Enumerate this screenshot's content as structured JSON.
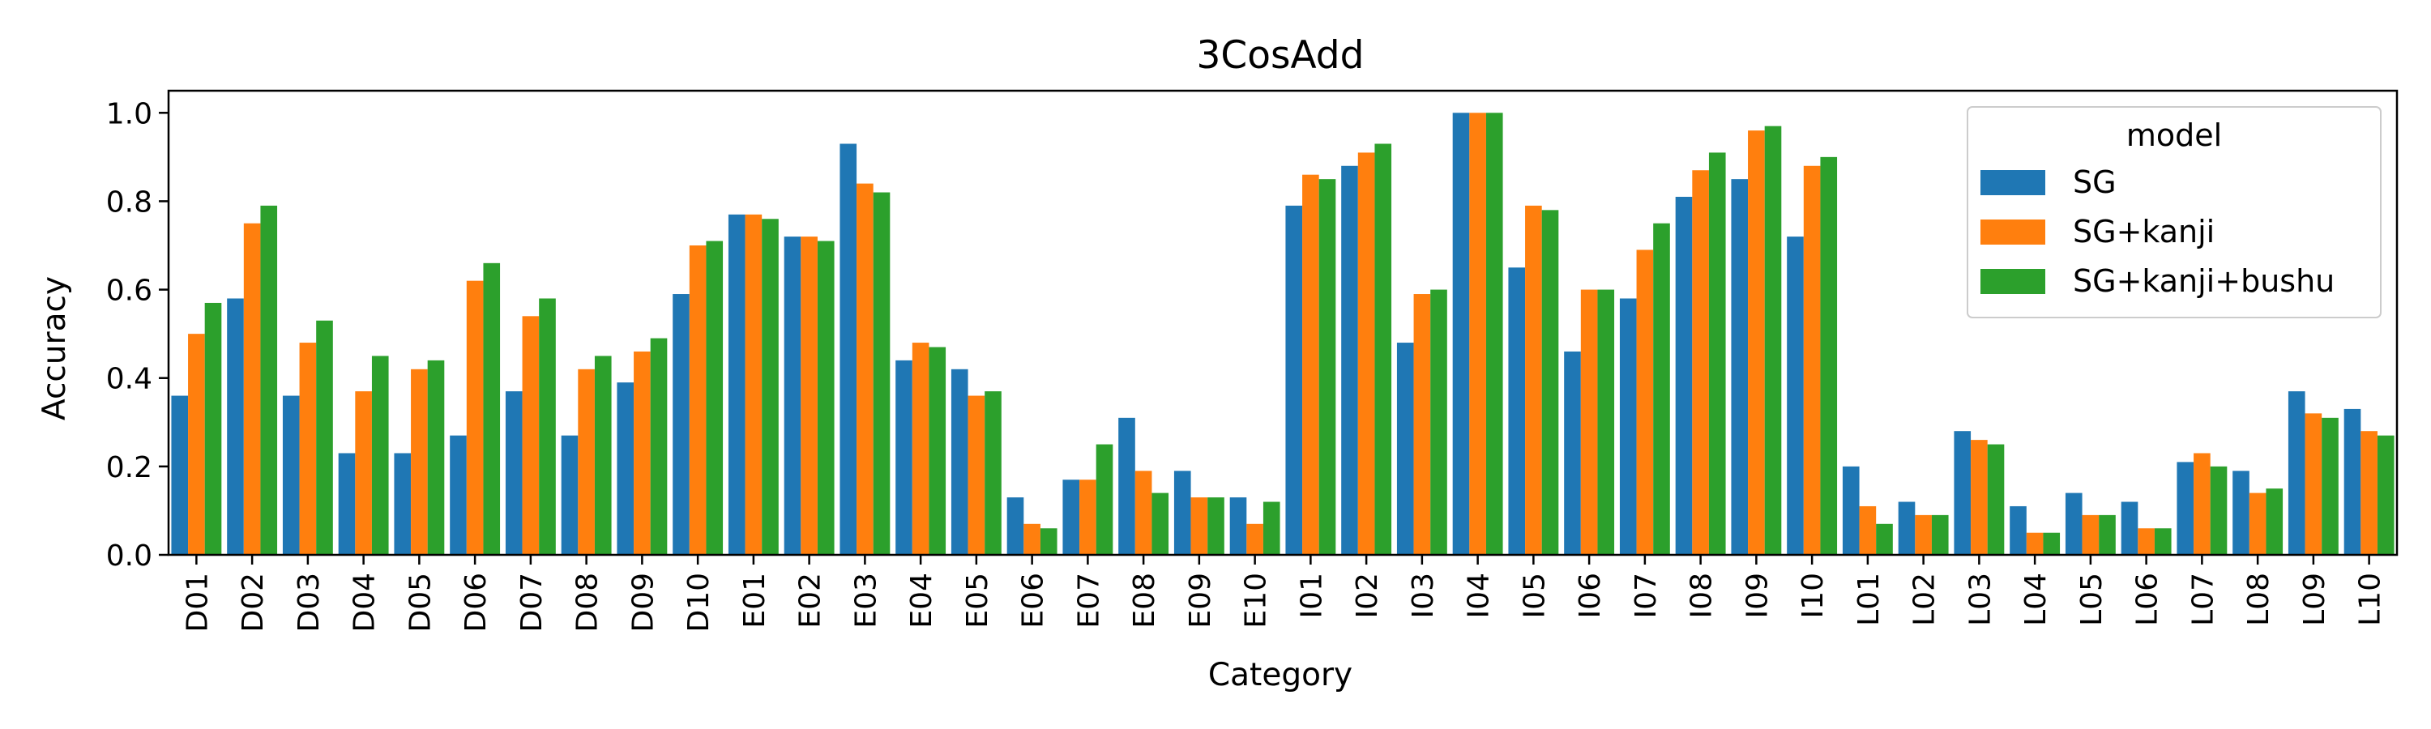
{
  "chart_data": {
    "type": "bar",
    "title": "3CosAdd",
    "xlabel": "Category",
    "ylabel": "Accuracy",
    "ylim": [
      0,
      1.05
    ],
    "yticks": [
      "0.0",
      "0.2",
      "0.4",
      "0.6",
      "0.8",
      "1.0"
    ],
    "legend": {
      "title": "model",
      "placement": "top-right"
    },
    "categories": [
      "D01",
      "D02",
      "D03",
      "D04",
      "D05",
      "D06",
      "D07",
      "D08",
      "D09",
      "D10",
      "E01",
      "E02",
      "E03",
      "E04",
      "E05",
      "E06",
      "E07",
      "E08",
      "E09",
      "E10",
      "I01",
      "I02",
      "I03",
      "I04",
      "I05",
      "I06",
      "I07",
      "I08",
      "I09",
      "I10",
      "L01",
      "L02",
      "L03",
      "L04",
      "L05",
      "L06",
      "L07",
      "L08",
      "L09",
      "L10"
    ],
    "series": [
      {
        "name": "SG",
        "color": "#1f77b4",
        "values": [
          0.36,
          0.58,
          0.36,
          0.23,
          0.23,
          0.27,
          0.37,
          0.27,
          0.39,
          0.59,
          0.77,
          0.72,
          0.93,
          0.44,
          0.42,
          0.13,
          0.17,
          0.31,
          0.19,
          0.13,
          0.79,
          0.88,
          0.48,
          1.0,
          0.65,
          0.46,
          0.58,
          0.81,
          0.85,
          0.72,
          0.2,
          0.12,
          0.28,
          0.11,
          0.14,
          0.12,
          0.21,
          0.19,
          0.37,
          0.33
        ]
      },
      {
        "name": "SG+kanji",
        "color": "#ff7f0e",
        "values": [
          0.5,
          0.75,
          0.48,
          0.37,
          0.42,
          0.62,
          0.54,
          0.42,
          0.46,
          0.7,
          0.77,
          0.72,
          0.84,
          0.48,
          0.36,
          0.07,
          0.17,
          0.19,
          0.13,
          0.07,
          0.86,
          0.91,
          0.59,
          1.0,
          0.79,
          0.6,
          0.69,
          0.87,
          0.96,
          0.88,
          0.11,
          0.09,
          0.26,
          0.05,
          0.09,
          0.06,
          0.23,
          0.14,
          0.32,
          0.28
        ]
      },
      {
        "name": "SG+kanji+bushu",
        "color": "#2ca02c",
        "values": [
          0.57,
          0.79,
          0.53,
          0.45,
          0.44,
          0.66,
          0.58,
          0.45,
          0.49,
          0.71,
          0.76,
          0.71,
          0.82,
          0.47,
          0.37,
          0.06,
          0.25,
          0.14,
          0.13,
          0.12,
          0.85,
          0.93,
          0.6,
          1.0,
          0.78,
          0.6,
          0.75,
          0.91,
          0.97,
          0.9,
          0.07,
          0.09,
          0.25,
          0.05,
          0.09,
          0.06,
          0.2,
          0.15,
          0.31,
          0.27
        ]
      }
    ]
  }
}
